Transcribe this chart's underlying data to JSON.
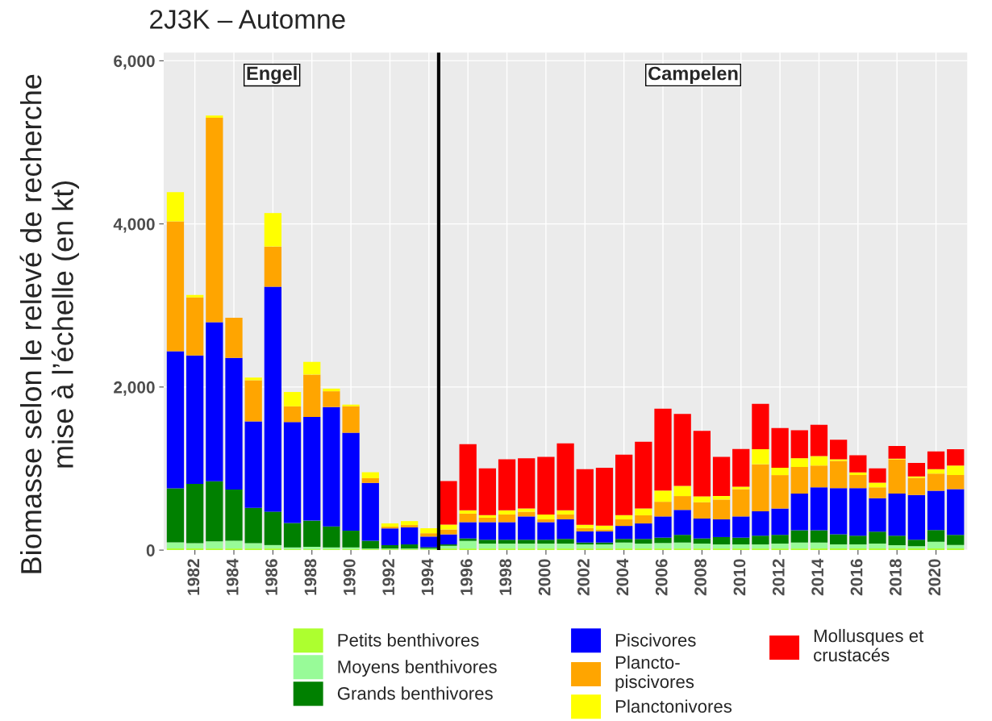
{
  "chart_data": {
    "type": "bar",
    "stacked": true,
    "title": "2J3K – Automne",
    "ylabel": "Biomasse selon le relevé de recherche\nmise à l’échelle (en kt)",
    "x": [
      1981,
      1982,
      1983,
      1984,
      1985,
      1986,
      1987,
      1988,
      1989,
      1990,
      1991,
      1992,
      1993,
      1994,
      1995,
      1996,
      1997,
      1998,
      1999,
      2000,
      2001,
      2002,
      2003,
      2004,
      2005,
      2006,
      2007,
      2008,
      2009,
      2010,
      2011,
      2012,
      2013,
      2014,
      2015,
      2016,
      2017,
      2018,
      2019,
      2020,
      2021
    ],
    "series": [
      {
        "name": "Petits benthivores",
        "color": "#adff2f",
        "values": [
          20,
          20,
          20,
          20,
          20,
          20,
          10,
          10,
          10,
          10,
          10,
          10,
          10,
          10,
          20,
          20,
          20,
          20,
          20,
          20,
          20,
          20,
          20,
          20,
          20,
          20,
          20,
          20,
          20,
          20,
          20,
          20,
          20,
          20,
          20,
          20,
          20,
          20,
          20,
          20,
          20
        ]
      },
      {
        "name": "Moyens benthivores",
        "color": "#98fb98",
        "values": [
          74,
          66,
          87,
          95,
          66,
          42,
          23,
          31,
          23,
          23,
          10,
          10,
          10,
          10,
          33,
          93,
          60,
          60,
          60,
          60,
          60,
          50,
          50,
          73,
          60,
          67,
          73,
          60,
          50,
          50,
          50,
          60,
          73,
          73,
          50,
          50,
          60,
          40,
          27,
          83,
          43
        ]
      },
      {
        "name": "Grands benthivores",
        "color": "#008000",
        "values": [
          664,
          726,
          738,
          627,
          431,
          410,
          299,
          320,
          258,
          205,
          95,
          41,
          50,
          15,
          17,
          30,
          47,
          47,
          47,
          47,
          57,
          23,
          23,
          44,
          57,
          66,
          94,
          63,
          90,
          83,
          107,
          107,
          150,
          150,
          123,
          107,
          147,
          117,
          80,
          144,
          124
        ]
      },
      {
        "name": "Piscivores",
        "color": "#0000ff",
        "values": [
          1682,
          1574,
          1951,
          1616,
          1062,
          2759,
          1238,
          1271,
          1464,
          1201,
          709,
          205,
          209,
          131,
          123,
          200,
          216,
          216,
          286,
          216,
          240,
          137,
          137,
          160,
          190,
          260,
          306,
          244,
          217,
          260,
          300,
          323,
          450,
          527,
          567,
          583,
          410,
          516,
          550,
          480,
          560
        ]
      },
      {
        "name": "Plancto-\npiscivores",
        "color": "#ffa500",
        "values": [
          1590,
          714,
          2505,
          492,
          504,
          492,
          193,
          521,
          193,
          324,
          58,
          21,
          28,
          41,
          60,
          104,
          54,
          94,
          57,
          34,
          60,
          40,
          23,
          80,
          100,
          180,
          170,
          200,
          243,
          334,
          576,
          410,
          327,
          267,
          333,
          160,
          133,
          417,
          210,
          210,
          173
        ]
      },
      {
        "name": "Planctonivores",
        "color": "#ffff00",
        "values": [
          360,
          28,
          29,
          0,
          33,
          410,
          176,
          155,
          32,
          21,
          73,
          41,
          49,
          61,
          60,
          40,
          33,
          50,
          40,
          60,
          50,
          40,
          47,
          53,
          83,
          137,
          124,
          73,
          43,
          30,
          184,
          90,
          107,
          116,
          20,
          33,
          57,
          10,
          16,
          56,
          117
        ]
      },
      {
        "name": "Mollusques et\ncrustacés",
        "color": "#ff0000",
        "values": [
          0,
          0,
          0,
          0,
          0,
          0,
          0,
          0,
          0,
          0,
          0,
          0,
          0,
          0,
          534,
          813,
          573,
          626,
          617,
          706,
          823,
          683,
          710,
          740,
          820,
          1003,
          883,
          803,
          480,
          463,
          556,
          487,
          343,
          384,
          240,
          210,
          176,
          157,
          167,
          217,
          200
        ]
      }
    ],
    "xlim": [
      1980.4,
      2021.6
    ],
    "xticks": [
      1982,
      1984,
      1986,
      1988,
      1990,
      1992,
      1994,
      1996,
      1998,
      2000,
      2002,
      2004,
      2006,
      2008,
      2010,
      2012,
      2014,
      2016,
      2018,
      2020
    ],
    "ylim": [
      0,
      6100
    ],
    "yticks": [
      {
        "value": 0,
        "label": "0"
      },
      {
        "value": 2000,
        "label": "2,000"
      },
      {
        "value": 4000,
        "label": "4,000"
      },
      {
        "value": 6000,
        "label": "6,000"
      }
    ],
    "ref_lines": [
      {
        "axis": "x",
        "value": 1994.5,
        "color": "#000000"
      }
    ],
    "annotations": [
      "Engel",
      "Campelen"
    ],
    "grid": true,
    "legend": "bottom"
  }
}
